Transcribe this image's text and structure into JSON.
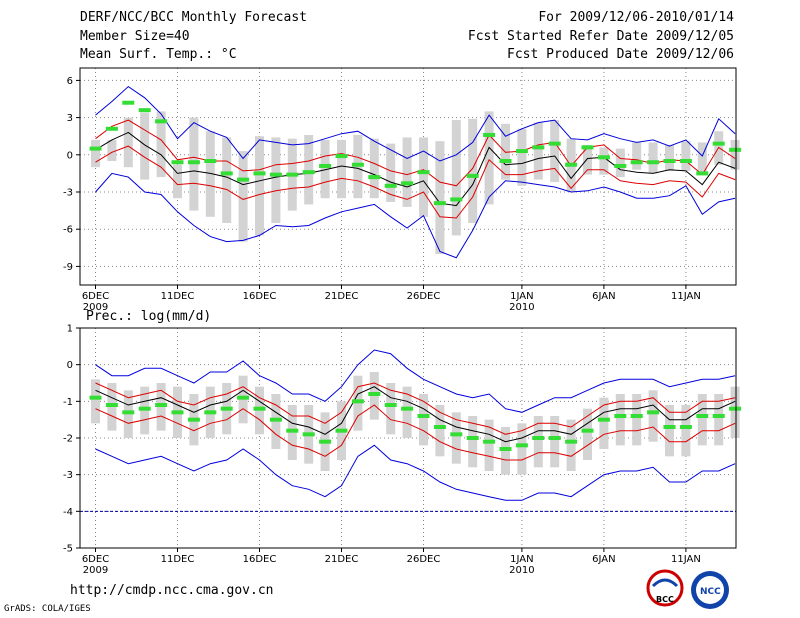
{
  "header": {
    "title": "DERF/NCC/BCC Monthly Forecast",
    "member": "Member Size=40",
    "variable": "Mean Surf. Temp.: °C",
    "period": "For 2009/12/06-2010/01/14",
    "started": "Fcst Started Refer Date 2009/12/05",
    "produced": "Fcst Produced Date 2009/12/06"
  },
  "footer": {
    "url": "http://cmdp.ncc.cma.gov.cn",
    "credit": "GrADS: COLA/IGES"
  },
  "logos": {
    "bcc": "BCC",
    "ncc": "NCC"
  },
  "colors": {
    "upper": "#0000dd",
    "lower": "#0000dd",
    "p80": "#dd0000",
    "p20": "#dd0000",
    "mean": "#000000",
    "box": "#d3d3d3",
    "obs": "#33dd33",
    "grid": "#888888",
    "refline": "#0000aa"
  },
  "chart_data": [
    {
      "type": "line",
      "title": "Mean Surf. Temp.: °C",
      "ylabel": "°C",
      "ylim": [
        -10.5,
        7
      ],
      "yticks": [
        6,
        3,
        0,
        -3,
        -6,
        -9
      ],
      "xticks": [
        {
          "day": 0,
          "label": "6DEC",
          "sub": "2009"
        },
        {
          "day": 5,
          "label": "11DEC",
          "sub": ""
        },
        {
          "day": 10,
          "label": "16DEC",
          "sub": ""
        },
        {
          "day": 15,
          "label": "21DEC",
          "sub": ""
        },
        {
          "day": 20,
          "label": "26DEC",
          "sub": ""
        },
        {
          "day": 26,
          "label": "1JAN",
          "sub": "2010"
        },
        {
          "day": 31,
          "label": "6JAN",
          "sub": ""
        },
        {
          "day": 36,
          "label": "11JAN",
          "sub": ""
        }
      ],
      "series": [
        {
          "name": "max",
          "values": [
            3.2,
            4.3,
            5.5,
            4.6,
            3.3,
            1.3,
            2.6,
            1.9,
            1.4,
            -0.3,
            1.2,
            1.0,
            0.8,
            0.9,
            1.3,
            1.7,
            1.9,
            1.1,
            0.4,
            -0.3,
            0.3,
            -0.5,
            0.0,
            1.0,
            3.2,
            1.5,
            2.1,
            2.6,
            2.8,
            1.3,
            1.2,
            1.7,
            1.3,
            1.0,
            1.2,
            0.7,
            1.2,
            -0.1,
            2.9,
            1.7
          ]
        },
        {
          "name": "p80",
          "values": [
            1.3,
            2.3,
            2.8,
            2.0,
            1.2,
            -0.4,
            -0.2,
            -0.5,
            -0.5,
            -1.3,
            -1.2,
            -0.8,
            -0.7,
            -0.5,
            -0.1,
            0.1,
            -0.2,
            -0.7,
            -1.3,
            -1.6,
            -1.2,
            -2.2,
            -2.5,
            -1.1,
            1.6,
            0.2,
            0.3,
            0.8,
            1.0,
            -0.9,
            0.6,
            0.8,
            -0.3,
            -0.4,
            -0.7,
            -0.4,
            -0.5,
            -1.6,
            0.6,
            -0.3
          ]
        },
        {
          "name": "mean",
          "values": [
            0.4,
            1.2,
            1.8,
            0.8,
            0.0,
            -1.5,
            -1.3,
            -1.5,
            -1.8,
            -2.4,
            -2.1,
            -1.8,
            -1.6,
            -1.5,
            -1.2,
            -0.9,
            -1.1,
            -1.6,
            -2.2,
            -2.6,
            -2.1,
            -3.9,
            -4.1,
            -2.4,
            0.6,
            -0.8,
            -0.7,
            -0.3,
            -0.1,
            -1.9,
            -0.3,
            -0.2,
            -1.2,
            -1.4,
            -1.5,
            -1.2,
            -1.3,
            -2.4,
            -0.6,
            -1.1
          ]
        },
        {
          "name": "p20",
          "values": [
            -0.6,
            0.2,
            0.7,
            -0.2,
            -1.0,
            -2.4,
            -2.3,
            -2.5,
            -2.8,
            -3.6,
            -3.2,
            -2.9,
            -2.7,
            -2.6,
            -2.2,
            -1.9,
            -2.1,
            -2.6,
            -3.2,
            -3.6,
            -3.0,
            -5.0,
            -5.1,
            -3.4,
            -0.4,
            -1.6,
            -1.6,
            -1.3,
            -1.1,
            -2.7,
            -1.2,
            -1.2,
            -2.1,
            -2.3,
            -2.4,
            -2.1,
            -2.2,
            -3.4,
            -1.5,
            -2.0
          ]
        },
        {
          "name": "min",
          "values": [
            -3.0,
            -1.5,
            -1.8,
            -3.0,
            -3.2,
            -4.6,
            -5.7,
            -6.6,
            -7.0,
            -6.9,
            -6.5,
            -5.7,
            -5.8,
            -5.7,
            -5.1,
            -4.6,
            -4.3,
            -4.0,
            -5.0,
            -5.9,
            -4.9,
            -7.8,
            -8.3,
            -6.1,
            -3.4,
            -2.1,
            -2.2,
            -2.4,
            -2.6,
            -3.0,
            -2.9,
            -2.6,
            -3.0,
            -3.5,
            -3.5,
            -3.3,
            -2.5,
            -4.8,
            -3.8,
            -3.5
          ]
        },
        {
          "name": "box_high",
          "values": [
            1.2,
            1.2,
            3.0,
            3.4,
            3.5,
            -0.8,
            3.0,
            1.9,
            1.4,
            0.3,
            1.5,
            1.4,
            1.3,
            1.6,
            1.2,
            1.2,
            1.6,
            1.3,
            0.9,
            1.4,
            1.4,
            1.1,
            2.8,
            2.9,
            3.5,
            2.5,
            2.1,
            2.6,
            2.8,
            1.3,
            0.8,
            0.6,
            0.5,
            1.0,
            1.0,
            0.8,
            1.1,
            1.0,
            1.9,
            1.2
          ]
        },
        {
          "name": "box_low",
          "values": [
            -1.0,
            -0.5,
            -1.0,
            -2.0,
            -1.8,
            -3.5,
            -4.5,
            -5.0,
            -5.5,
            -7.0,
            -6.5,
            -5.5,
            -4.5,
            -4.0,
            -3.5,
            -3.5,
            -3.5,
            -3.5,
            -3.8,
            -4.2,
            -5.0,
            -8.0,
            -6.5,
            -5.5,
            -4.0,
            -2.0,
            -2.5,
            -2.0,
            -2.2,
            -3.0,
            -1.6,
            -1.6,
            -1.8,
            -1.2,
            -1.5,
            -1.3,
            -1.3,
            -1.6,
            -0.8,
            -1.2
          ]
        },
        {
          "name": "observed",
          "values": [
            0.5,
            2.1,
            4.2,
            3.6,
            2.7,
            -0.6,
            -0.6,
            -0.5,
            -1.5,
            -2.0,
            -1.5,
            -1.6,
            -1.6,
            -1.4,
            -0.9,
            -0.1,
            -0.8,
            -1.8,
            -2.5,
            -2.3,
            -1.4,
            -3.9,
            -3.6,
            -1.7,
            1.6,
            -0.5,
            0.3,
            0.6,
            0.9,
            -0.8,
            0.6,
            -0.2,
            -0.9,
            -0.6,
            -0.6,
            -0.5,
            -0.5,
            -1.5,
            0.9,
            0.4
          ]
        }
      ]
    },
    {
      "type": "line",
      "title": "Prec.: log(mm/d)",
      "ylabel": "log(mm/d)",
      "ylim": [
        -5,
        1
      ],
      "yticks": [
        1,
        0,
        -1,
        -2,
        -3,
        -4,
        -5
      ],
      "reference_line": -4,
      "xticks": [
        {
          "day": 0,
          "label": "6DEC",
          "sub": "2009"
        },
        {
          "day": 5,
          "label": "11DEC",
          "sub": ""
        },
        {
          "day": 10,
          "label": "16DEC",
          "sub": ""
        },
        {
          "day": 15,
          "label": "21DEC",
          "sub": ""
        },
        {
          "day": 20,
          "label": "26DEC",
          "sub": ""
        },
        {
          "day": 26,
          "label": "1JAN",
          "sub": "2010"
        },
        {
          "day": 31,
          "label": "6JAN",
          "sub": ""
        },
        {
          "day": 36,
          "label": "11JAN",
          "sub": ""
        }
      ],
      "series": [
        {
          "name": "max",
          "values": [
            0.0,
            -0.3,
            -0.3,
            -0.1,
            -0.1,
            -0.3,
            -0.5,
            -0.2,
            -0.2,
            0.1,
            -0.3,
            -0.5,
            -0.8,
            -0.8,
            -1.0,
            -0.6,
            0.0,
            0.4,
            0.3,
            -0.1,
            -0.4,
            -0.6,
            -0.8,
            -0.9,
            -0.8,
            -1.2,
            -1.3,
            -1.1,
            -0.9,
            -0.9,
            -0.7,
            -0.5,
            -0.4,
            -0.4,
            -0.4,
            -0.6,
            -0.5,
            -0.4,
            -0.4,
            -0.3
          ]
        },
        {
          "name": "p80",
          "values": [
            -0.5,
            -0.7,
            -0.9,
            -0.8,
            -0.7,
            -1.0,
            -1.1,
            -0.9,
            -0.8,
            -0.6,
            -0.9,
            -1.1,
            -1.4,
            -1.4,
            -1.6,
            -1.3,
            -0.6,
            -0.5,
            -0.7,
            -0.8,
            -1.0,
            -1.3,
            -1.5,
            -1.6,
            -1.7,
            -1.9,
            -1.8,
            -1.6,
            -1.6,
            -1.7,
            -1.4,
            -1.1,
            -1.0,
            -1.0,
            -0.9,
            -1.3,
            -1.3,
            -1.0,
            -1.0,
            -0.9
          ]
        },
        {
          "name": "mean",
          "values": [
            -0.7,
            -0.9,
            -1.1,
            -1.0,
            -0.9,
            -1.1,
            -1.3,
            -1.1,
            -1.0,
            -0.7,
            -1.0,
            -1.3,
            -1.6,
            -1.7,
            -1.9,
            -1.6,
            -0.8,
            -0.6,
            -0.9,
            -1.0,
            -1.2,
            -1.5,
            -1.7,
            -1.8,
            -1.9,
            -2.1,
            -2.0,
            -1.8,
            -1.8,
            -1.9,
            -1.6,
            -1.3,
            -1.2,
            -1.2,
            -1.1,
            -1.5,
            -1.5,
            -1.2,
            -1.2,
            -1.0
          ]
        },
        {
          "name": "p20",
          "values": [
            -1.2,
            -1.4,
            -1.6,
            -1.5,
            -1.4,
            -1.6,
            -1.8,
            -1.6,
            -1.5,
            -1.2,
            -1.5,
            -1.9,
            -2.2,
            -2.3,
            -2.5,
            -2.2,
            -1.4,
            -1.1,
            -1.5,
            -1.6,
            -1.8,
            -2.1,
            -2.3,
            -2.4,
            -2.5,
            -2.6,
            -2.6,
            -2.4,
            -2.4,
            -2.5,
            -2.2,
            -1.9,
            -1.8,
            -1.8,
            -1.7,
            -2.1,
            -2.1,
            -1.8,
            -1.8,
            -1.6
          ]
        },
        {
          "name": "min",
          "values": [
            -2.3,
            -2.5,
            -2.7,
            -2.6,
            -2.5,
            -2.7,
            -2.9,
            -2.7,
            -2.6,
            -2.3,
            -2.6,
            -3.0,
            -3.3,
            -3.4,
            -3.6,
            -3.3,
            -2.5,
            -2.2,
            -2.6,
            -2.7,
            -2.9,
            -3.2,
            -3.4,
            -3.5,
            -3.6,
            -3.7,
            -3.7,
            -3.5,
            -3.5,
            -3.6,
            -3.3,
            -3.0,
            -2.9,
            -2.9,
            -2.8,
            -3.2,
            -3.2,
            -2.9,
            -2.9,
            -2.7
          ]
        },
        {
          "name": "box_high",
          "values": [
            -0.4,
            -0.5,
            -0.7,
            -0.6,
            -0.5,
            -0.6,
            -0.8,
            -0.6,
            -0.5,
            -0.3,
            -0.6,
            -0.8,
            -1.1,
            -1.1,
            -1.3,
            -1.0,
            -0.3,
            -0.2,
            -0.5,
            -0.6,
            -0.8,
            -1.1,
            -1.3,
            -1.4,
            -1.5,
            -1.7,
            -1.6,
            -1.4,
            -1.4,
            -1.5,
            -1.2,
            -0.9,
            -0.8,
            -0.8,
            -0.7,
            -1.1,
            -1.1,
            -0.8,
            -0.8,
            -0.6
          ]
        },
        {
          "name": "box_low",
          "values": [
            -1.6,
            -1.8,
            -2.0,
            -1.9,
            -1.8,
            -2.0,
            -2.2,
            -2.0,
            -1.9,
            -1.6,
            -1.9,
            -2.3,
            -2.6,
            -2.7,
            -2.9,
            -2.6,
            -1.8,
            -1.5,
            -1.9,
            -2.0,
            -2.2,
            -2.5,
            -2.7,
            -2.8,
            -2.9,
            -3.0,
            -3.0,
            -2.8,
            -2.8,
            -2.9,
            -2.6,
            -2.3,
            -2.2,
            -2.2,
            -2.1,
            -2.5,
            -2.5,
            -2.2,
            -2.2,
            -2.0
          ]
        },
        {
          "name": "observed",
          "values": [
            -0.9,
            -1.1,
            -1.3,
            -1.2,
            -1.1,
            -1.3,
            -1.5,
            -1.3,
            -1.2,
            -0.9,
            -1.2,
            -1.5,
            -1.8,
            -1.9,
            -2.1,
            -1.8,
            -1.0,
            -0.8,
            -1.1,
            -1.2,
            -1.4,
            -1.7,
            -1.9,
            -2.0,
            -2.1,
            -2.3,
            -2.2,
            -2.0,
            -2.0,
            -2.1,
            -1.8,
            -1.5,
            -1.4,
            -1.4,
            -1.3,
            -1.7,
            -1.7,
            -1.4,
            -1.4,
            -1.2
          ]
        }
      ]
    }
  ]
}
